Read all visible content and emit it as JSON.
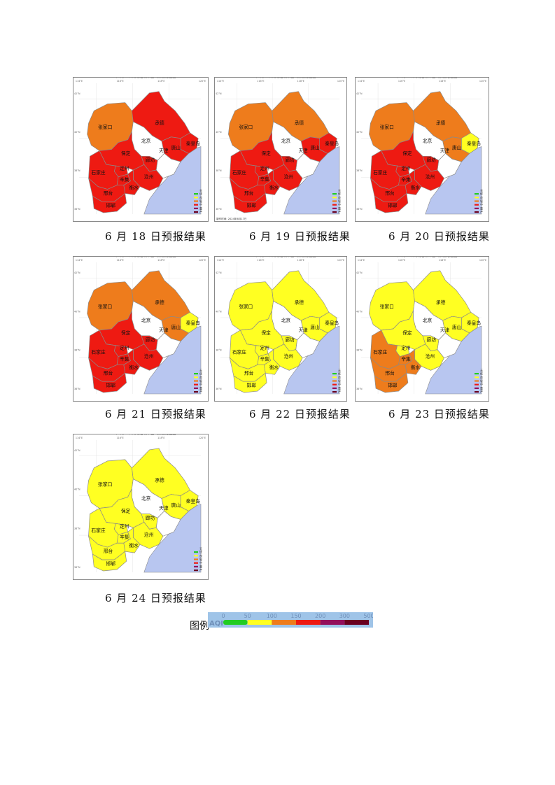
{
  "colors": {
    "level": {
      "good": "#22cc22",
      "moderate": "#ffff22",
      "light": "#ee7c1c",
      "medium": "#ee1a12",
      "heavy": "#930f5b",
      "severe": "#6a0020"
    },
    "sea": "#b8c6f0",
    "blank": "#ffffff",
    "border": "#8a8a8a"
  },
  "panels": [
    {
      "date_label": "2024年6月18日河北省城市空气质量落区图",
      "caption": "6 月 18 日预报结果",
      "regions": {
        "zhangjiakou": "light",
        "chengde": "medium",
        "qinhuangdao": "medium",
        "tangshan": "medium",
        "langfang": "medium",
        "baoding": "medium",
        "shijiazhuang": "medium",
        "hengshui": "medium",
        "cangzhou": "medium",
        "xingtai": "medium",
        "handan": "medium",
        "dingzhou": "medium",
        "xinji": "medium"
      }
    },
    {
      "date_label": "2024年6月19日河北省城市空气质量落区图",
      "caption": "6 月 19 日预报结果",
      "footnote": "制作时间: 2024年6月17日",
      "regions": {
        "zhangjiakou": "light",
        "chengde": "light",
        "qinhuangdao": "medium",
        "tangshan": "medium",
        "langfang": "medium",
        "baoding": "medium",
        "shijiazhuang": "medium",
        "hengshui": "medium",
        "cangzhou": "medium",
        "xingtai": "medium",
        "handan": "medium",
        "dingzhou": "medium",
        "xinji": "medium"
      }
    },
    {
      "date_label": "2024年6月20日河北省城市空气质量落区图",
      "caption": "6 月 20 日预报结果",
      "regions": {
        "zhangjiakou": "light",
        "chengde": "light",
        "qinhuangdao": "moderate",
        "tangshan": "light",
        "langfang": "medium",
        "baoding": "medium",
        "shijiazhuang": "medium",
        "hengshui": "medium",
        "cangzhou": "medium",
        "xingtai": "medium",
        "handan": "medium",
        "dingzhou": "medium",
        "xinji": "medium"
      }
    },
    {
      "date_label": "2024年6月21日河北省城市空气质量落区图",
      "caption": "6 月 21 日预报结果",
      "regions": {
        "zhangjiakou": "light",
        "chengde": "light",
        "qinhuangdao": "moderate",
        "tangshan": "light",
        "langfang": "medium",
        "baoding": "medium",
        "shijiazhuang": "medium",
        "hengshui": "medium",
        "cangzhou": "medium",
        "xingtai": "medium",
        "handan": "medium",
        "dingzhou": "medium",
        "xinji": "medium"
      }
    },
    {
      "date_label": "2024年6月22日河北省城市空气质量落区图",
      "caption": "6 月 22 日预报结果",
      "regions": {
        "zhangjiakou": "moderate",
        "chengde": "moderate",
        "qinhuangdao": "moderate",
        "tangshan": "moderate",
        "langfang": "moderate",
        "baoding": "moderate",
        "shijiazhuang": "moderate",
        "hengshui": "moderate",
        "cangzhou": "moderate",
        "xingtai": "moderate",
        "handan": "moderate",
        "dingzhou": "moderate",
        "xinji": "moderate"
      }
    },
    {
      "date_label": "2024年6月23日河北省城市空气质量落区图",
      "caption": "6 月 23 日预报结果",
      "regions": {
        "zhangjiakou": "moderate",
        "chengde": "moderate",
        "qinhuangdao": "moderate",
        "tangshan": "moderate",
        "langfang": "moderate",
        "baoding": "moderate",
        "shijiazhuang": "light",
        "hengshui": "light",
        "cangzhou": "moderate",
        "xingtai": "light",
        "handan": "light",
        "dingzhou": "moderate",
        "xinji": "light"
      }
    },
    {
      "date_label": "2024年6月24日河北省城市空气质量落区图",
      "caption": "6 月 24 日预报结果",
      "regions": {
        "zhangjiakou": "moderate",
        "chengde": "moderate",
        "qinhuangdao": "moderate",
        "tangshan": "moderate",
        "langfang": "moderate",
        "baoding": "moderate",
        "shijiazhuang": "moderate",
        "hengshui": "moderate",
        "cangzhou": "moderate",
        "xingtai": "moderate",
        "handan": "moderate",
        "dingzhou": "moderate",
        "xinji": "moderate"
      }
    }
  ],
  "city_labels": {
    "zhangjiakou": "张家口",
    "chengde": "承德",
    "qinhuangdao": "秦皇岛",
    "tangshan": "唐山",
    "beijing": "北京",
    "tianjin": "天津",
    "langfang": "廊坊",
    "baoding": "保定",
    "dingzhou": "定州",
    "shijiazhuang": "石家庄",
    "xinji": "辛集",
    "hengshui": "衡水",
    "cangzhou": "沧州",
    "xingtai": "邢台",
    "handan": "邯郸"
  },
  "map_legend": [
    {
      "label": "优",
      "level": "good"
    },
    {
      "label": "良",
      "level": "moderate"
    },
    {
      "label": "轻",
      "level": "light"
    },
    {
      "label": "中",
      "level": "medium"
    },
    {
      "label": "重",
      "level": "heavy"
    },
    {
      "label": "严",
      "level": "severe"
    }
  ],
  "map_legend_title": "无",
  "lon_ticks": [
    "114°E",
    "116°E",
    "118°E",
    "120°E"
  ],
  "lat_ticks": [
    "42°N",
    "40°N",
    "38°N",
    "36°N"
  ],
  "aqi_legend": {
    "label": "图例",
    "prefix": "AQI",
    "ticks": [
      "0",
      "50",
      "100",
      "150",
      "200",
      "300",
      "500"
    ],
    "segments": [
      "good",
      "moderate",
      "light",
      "medium",
      "heavy",
      "severe"
    ]
  }
}
